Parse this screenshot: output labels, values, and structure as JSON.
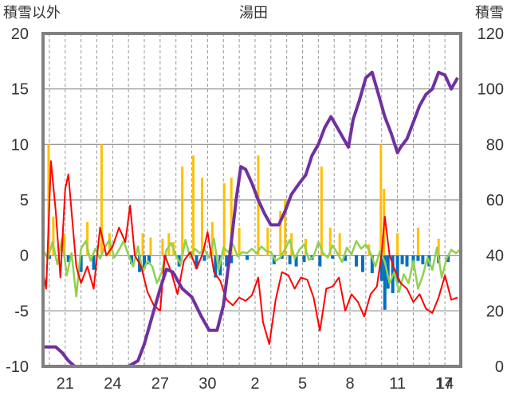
{
  "chart_data": {
    "type": "line",
    "title": "湯田",
    "left_axis_label": "積雪以外",
    "right_axis_label": "積雪",
    "left_ylim": [
      -10,
      20
    ],
    "left_ticks": [
      "-10",
      "-5",
      "0",
      "5",
      "10",
      "15",
      "20"
    ],
    "right_ylim": [
      0,
      120
    ],
    "right_ticks": [
      "0",
      "20",
      "40",
      "60",
      "80",
      "100",
      "120"
    ],
    "x_range": [
      19.6,
      46.0
    ],
    "x_ticks": [
      {
        "x": 21,
        "label": "21"
      },
      {
        "x": 24,
        "label": "24"
      },
      {
        "x": 27,
        "label": "27"
      },
      {
        "x": 30,
        "label": "30"
      },
      {
        "x": 33,
        "label": "2"
      },
      {
        "x": 36,
        "label": "5"
      },
      {
        "x": 39,
        "label": "8"
      },
      {
        "x": 42,
        "label": "11"
      },
      {
        "x": 45,
        "label": "14"
      },
      {
        "x": 48,
        "label": "17"
      }
    ],
    "grid": "vertical dashed, horizontal solid",
    "colors": {
      "snow_depth": "#7030a0",
      "temperature": "#ff0000",
      "precipitation": "#ffc000",
      "snow_change": "#0070c0",
      "green_series": "#92d050"
    },
    "snow_depth": [
      [
        19.6,
        7
      ],
      [
        20.4,
        7
      ],
      [
        20.8,
        5
      ],
      [
        21.2,
        2
      ],
      [
        21.6,
        0
      ],
      [
        25.0,
        0
      ],
      [
        25.6,
        2
      ],
      [
        26.0,
        8
      ],
      [
        26.6,
        20
      ],
      [
        27.0,
        28
      ],
      [
        27.4,
        35
      ],
      [
        27.8,
        34
      ],
      [
        28.4,
        28
      ],
      [
        29.0,
        25
      ],
      [
        29.6,
        18
      ],
      [
        30.1,
        13
      ],
      [
        30.6,
        13
      ],
      [
        31.0,
        22
      ],
      [
        31.4,
        40
      ],
      [
        31.8,
        60
      ],
      [
        32.1,
        72
      ],
      [
        32.4,
        71
      ],
      [
        32.8,
        66
      ],
      [
        33.2,
        60
      ],
      [
        33.6,
        55
      ],
      [
        34.0,
        51
      ],
      [
        34.5,
        51
      ],
      [
        34.9,
        56
      ],
      [
        35.3,
        62
      ],
      [
        35.8,
        66
      ],
      [
        36.2,
        69
      ],
      [
        36.6,
        76
      ],
      [
        37.0,
        80
      ],
      [
        37.4,
        86
      ],
      [
        37.8,
        90
      ],
      [
        38.2,
        86
      ],
      [
        38.6,
        82
      ],
      [
        38.9,
        79
      ],
      [
        39.2,
        89
      ],
      [
        39.6,
        96
      ],
      [
        40.0,
        104
      ],
      [
        40.4,
        106
      ],
      [
        40.8,
        98
      ],
      [
        41.2,
        90
      ],
      [
        41.6,
        84
      ],
      [
        42.0,
        77
      ],
      [
        42.2,
        79
      ],
      [
        42.6,
        82
      ],
      [
        43.0,
        88
      ],
      [
        43.4,
        94
      ],
      [
        43.8,
        98
      ],
      [
        44.2,
        100
      ],
      [
        44.6,
        106
      ],
      [
        45.0,
        105
      ],
      [
        45.4,
        100
      ],
      [
        45.8,
        104
      ]
    ],
    "temperature": [
      [
        19.6,
        -1.5
      ],
      [
        19.8,
        -3
      ],
      [
        20.1,
        8.5
      ],
      [
        20.4,
        4
      ],
      [
        20.7,
        -2
      ],
      [
        21.0,
        6
      ],
      [
        21.2,
        7.3
      ],
      [
        21.4,
        4
      ],
      [
        21.7,
        -1
      ],
      [
        22.0,
        -2.5
      ],
      [
        22.4,
        -1
      ],
      [
        22.8,
        -3
      ],
      [
        23.2,
        2.5
      ],
      [
        23.6,
        0
      ],
      [
        24.0,
        0.8
      ],
      [
        24.4,
        2.5
      ],
      [
        24.8,
        1.2
      ],
      [
        25.1,
        4.5
      ],
      [
        25.4,
        0
      ],
      [
        25.8,
        -1
      ],
      [
        26.2,
        -3.3
      ],
      [
        26.6,
        -4.5
      ],
      [
        27.0,
        -5
      ],
      [
        27.3,
        0
      ],
      [
        27.7,
        -1.5
      ],
      [
        28.1,
        -3.5
      ],
      [
        28.5,
        -0.5
      ],
      [
        28.9,
        0.3
      ],
      [
        29.3,
        -1.2
      ],
      [
        29.7,
        0.2
      ],
      [
        30.0,
        2.1
      ],
      [
        30.4,
        -1.5
      ],
      [
        30.8,
        -2.3
      ],
      [
        31.2,
        -4
      ],
      [
        31.6,
        -4.5
      ],
      [
        32.0,
        -3.8
      ],
      [
        32.4,
        -4.1
      ],
      [
        32.8,
        -3.6
      ],
      [
        33.2,
        -2
      ],
      [
        33.5,
        -6
      ],
      [
        33.9,
        -8
      ],
      [
        34.3,
        -4
      ],
      [
        34.7,
        -1.5
      ],
      [
        35.1,
        -1.8
      ],
      [
        35.5,
        -3
      ],
      [
        35.9,
        -2
      ],
      [
        36.3,
        -2.2
      ],
      [
        36.7,
        -3.8
      ],
      [
        37.1,
        -6.8
      ],
      [
        37.5,
        -3
      ],
      [
        37.9,
        -2.8
      ],
      [
        38.3,
        -2
      ],
      [
        38.7,
        -5
      ],
      [
        39.1,
        -3.5
      ],
      [
        39.5,
        -4.2
      ],
      [
        39.9,
        -5.5
      ],
      [
        40.3,
        -3.5
      ],
      [
        40.7,
        -2.8
      ],
      [
        41.0,
        0.2
      ],
      [
        41.2,
        3.5
      ],
      [
        41.5,
        0
      ],
      [
        41.8,
        -1.2
      ],
      [
        42.2,
        -2.5
      ],
      [
        42.6,
        -3
      ],
      [
        43.0,
        -4.2
      ],
      [
        43.4,
        -3.5
      ],
      [
        43.8,
        -4.8
      ],
      [
        44.2,
        -5.2
      ],
      [
        44.6,
        -3.8
      ],
      [
        45.0,
        -1.8
      ],
      [
        45.4,
        -4
      ],
      [
        45.8,
        -3.8
      ]
    ],
    "green_series": [
      [
        19.6,
        0.5
      ],
      [
        19.9,
        -0.3
      ],
      [
        20.2,
        1.2
      ],
      [
        20.5,
        -0.8
      ],
      [
        20.8,
        1.5
      ],
      [
        21.1,
        -1.8
      ],
      [
        21.4,
        0.2
      ],
      [
        21.7,
        -3.7
      ],
      [
        22.0,
        0.6
      ],
      [
        22.3,
        1.3
      ],
      [
        22.6,
        -0.5
      ],
      [
        22.9,
        0.6
      ],
      [
        23.2,
        -0.3
      ],
      [
        23.5,
        0.7
      ],
      [
        23.8,
        1.4
      ],
      [
        24.1,
        -0.2
      ],
      [
        24.4,
        0.5
      ],
      [
        24.7,
        1.3
      ],
      [
        25.0,
        0
      ],
      [
        25.3,
        -1
      ],
      [
        25.6,
        0.8
      ],
      [
        25.9,
        -1.5
      ],
      [
        26.2,
        -0.5
      ],
      [
        26.5,
        -1
      ],
      [
        26.8,
        -2.5
      ],
      [
        27.1,
        -1.5
      ],
      [
        27.4,
        0.5
      ],
      [
        27.7,
        1.1
      ],
      [
        28.0,
        0
      ],
      [
        28.3,
        -0.8
      ],
      [
        28.6,
        1.4
      ],
      [
        28.9,
        -0.2
      ],
      [
        29.2,
        0.6
      ],
      [
        29.5,
        0.2
      ],
      [
        29.8,
        0.5
      ],
      [
        30.1,
        -0.2
      ],
      [
        30.4,
        1.5
      ],
      [
        30.7,
        -1.3
      ],
      [
        31.0,
        0.7
      ],
      [
        31.3,
        0.3
      ],
      [
        31.6,
        1.0
      ],
      [
        31.9,
        -0.1
      ],
      [
        32.2,
        0.3
      ],
      [
        32.5,
        0.2
      ],
      [
        32.8,
        0.6
      ],
      [
        33.1,
        0.2
      ],
      [
        33.4,
        0.8
      ],
      [
        33.7,
        0.4
      ],
      [
        34.0,
        0.3
      ],
      [
        34.3,
        -0.5
      ],
      [
        34.6,
        -0.2
      ],
      [
        34.9,
        0.6
      ],
      [
        35.2,
        1.4
      ],
      [
        35.5,
        -0.3
      ],
      [
        35.8,
        0.5
      ],
      [
        36.1,
        1.0
      ],
      [
        36.4,
        -0.4
      ],
      [
        36.7,
        -0.1
      ],
      [
        37.0,
        1.2
      ],
      [
        37.3,
        0.2
      ],
      [
        37.6,
        -0.2
      ],
      [
        37.9,
        0.9
      ],
      [
        38.2,
        0.2
      ],
      [
        38.5,
        -0.6
      ],
      [
        38.8,
        0.7
      ],
      [
        39.1,
        0.1
      ],
      [
        39.4,
        1.3
      ],
      [
        39.7,
        0.6
      ],
      [
        40.0,
        1.0
      ],
      [
        40.3,
        0.2
      ],
      [
        40.6,
        -1.0
      ],
      [
        40.9,
        0.4
      ],
      [
        41.2,
        -0.6
      ],
      [
        41.5,
        -2.5
      ],
      [
        41.8,
        -1.5
      ],
      [
        42.1,
        -3.3
      ],
      [
        42.4,
        -1.7
      ],
      [
        42.7,
        -2.5
      ],
      [
        43.0,
        -0.5
      ],
      [
        43.3,
        -3.0
      ],
      [
        43.6,
        -1.8
      ],
      [
        43.9,
        -0.2
      ],
      [
        44.2,
        -1.3
      ],
      [
        44.5,
        0.7
      ],
      [
        44.8,
        -2
      ],
      [
        45.1,
        -0.3
      ],
      [
        45.4,
        0.5
      ],
      [
        45.7,
        0.2
      ],
      [
        46.0,
        0.6
      ]
    ],
    "precipitation": [
      [
        19.95,
        10
      ],
      [
        20.25,
        3.5
      ],
      [
        20.95,
        2
      ],
      [
        22.4,
        3
      ],
      [
        23.3,
        10
      ],
      [
        23.8,
        2
      ],
      [
        25.9,
        2
      ],
      [
        26.4,
        1.6
      ],
      [
        27.15,
        1.5
      ],
      [
        27.55,
        2
      ],
      [
        27.85,
        1.2
      ],
      [
        28.4,
        8
      ],
      [
        29.1,
        9
      ],
      [
        29.65,
        7
      ],
      [
        30.3,
        3
      ],
      [
        31.05,
        6.5
      ],
      [
        31.5,
        7
      ],
      [
        32.0,
        2.5
      ],
      [
        33.2,
        9
      ],
      [
        33.8,
        2.5
      ],
      [
        34.6,
        4
      ],
      [
        34.9,
        5
      ],
      [
        35.3,
        2
      ],
      [
        36.2,
        1.5
      ],
      [
        37.2,
        8
      ],
      [
        37.75,
        2.5
      ],
      [
        38.35,
        2
      ],
      [
        40.2,
        1
      ],
      [
        40.95,
        10
      ],
      [
        41.15,
        6
      ],
      [
        42.0,
        2
      ],
      [
        43.3,
        2.5
      ],
      [
        44.6,
        1.5
      ]
    ],
    "snow_change": [
      [
        20.0,
        -0.3
      ],
      [
        21.2,
        -0.6
      ],
      [
        22.0,
        -1.5
      ],
      [
        22.8,
        -1.3
      ],
      [
        25.2,
        -0.8
      ],
      [
        25.7,
        -1.5
      ],
      [
        26.0,
        -1.2
      ],
      [
        26.3,
        -0.8
      ],
      [
        27.3,
        -0.4
      ],
      [
        28.2,
        -1
      ],
      [
        29.3,
        -1.2
      ],
      [
        29.8,
        -0.5
      ],
      [
        30.5,
        -2
      ],
      [
        30.8,
        -1.8
      ],
      [
        31.2,
        -1
      ],
      [
        31.5,
        -0.7
      ],
      [
        32.5,
        -0.4
      ],
      [
        34.2,
        -0.8
      ],
      [
        34.7,
        -0.3
      ],
      [
        35.2,
        -0.8
      ],
      [
        35.6,
        -1
      ],
      [
        36.1,
        -0.6
      ],
      [
        36.6,
        -0.4
      ],
      [
        37.1,
        -1
      ],
      [
        37.9,
        -0.3
      ],
      [
        38.7,
        -0.5
      ],
      [
        39.4,
        -1
      ],
      [
        39.8,
        -1.5
      ],
      [
        40.4,
        -1.6
      ],
      [
        41.0,
        -2.3
      ],
      [
        41.2,
        -4.9
      ],
      [
        41.4,
        -3
      ],
      [
        41.7,
        -3.4
      ],
      [
        42.0,
        -2.5
      ],
      [
        42.3,
        -0.8
      ],
      [
        42.6,
        -1
      ],
      [
        43.0,
        -1
      ],
      [
        43.3,
        -0.5
      ],
      [
        43.6,
        -0.8
      ],
      [
        44.0,
        -1
      ],
      [
        44.6,
        -0.7
      ],
      [
        45.2,
        -0.6
      ]
    ]
  }
}
